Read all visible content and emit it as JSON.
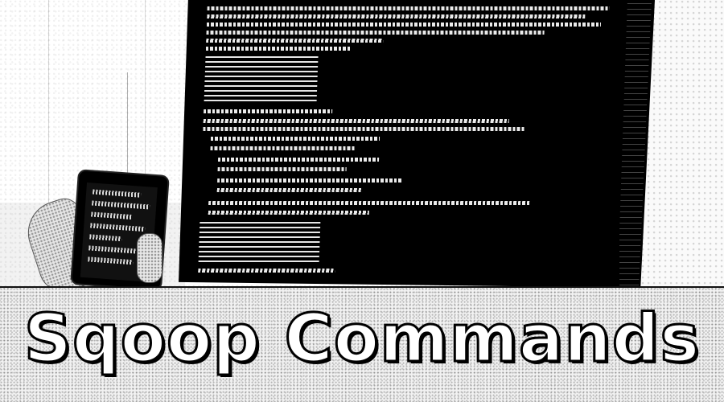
{
  "caption": {
    "title": "Sqoop Commands"
  },
  "colors": {
    "caption_fill": "#ffffff",
    "caption_outline": "#000000",
    "screen_bg": "#000000",
    "code_text": "#ffffff"
  },
  "icons": {
    "phone": "smartphone-icon",
    "monitor": "monitor-icon"
  }
}
